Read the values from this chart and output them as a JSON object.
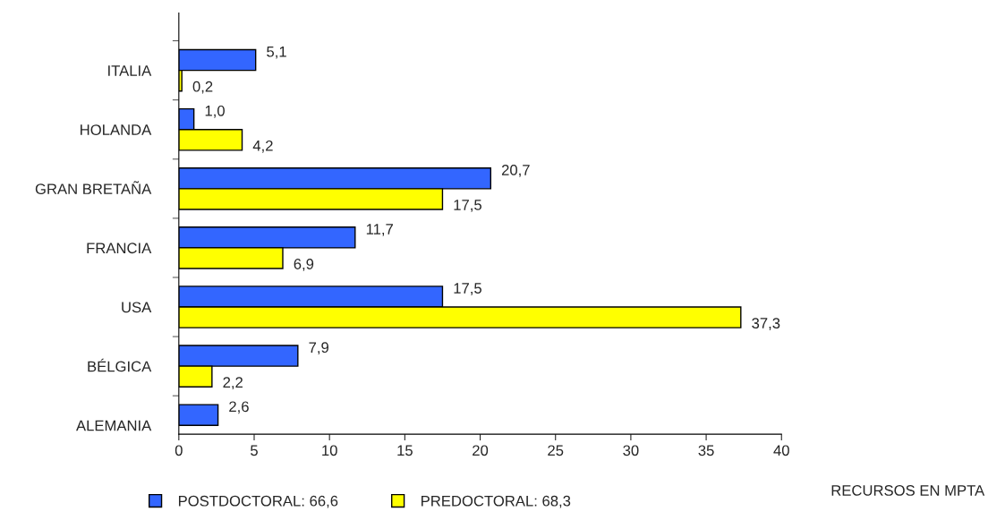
{
  "chart_data": {
    "type": "bar",
    "orientation": "horizontal",
    "categories": [
      "ITALIA",
      "HOLANDA",
      "GRAN BRETAÑA",
      "FRANCIA",
      "USA",
      "BÉLGICA",
      "ALEMANIA"
    ],
    "series": [
      {
        "name": "POSTDOCTORAL: 66,6",
        "color": "#3366ff",
        "values": [
          5.1,
          1.0,
          20.7,
          11.7,
          17.5,
          7.9,
          2.6
        ],
        "value_labels": [
          "5,1",
          "1,0",
          "20,7",
          "11,7",
          "17,5",
          "7,9",
          "2,6"
        ]
      },
      {
        "name": "PREDOCTORAL: 68,3",
        "color": "#ffff00",
        "values": [
          0.2,
          4.2,
          17.5,
          6.9,
          37.3,
          2.2,
          null
        ],
        "value_labels": [
          "0,2",
          "4,2",
          "17,5",
          "6,9",
          "37,3",
          "2,2",
          null
        ]
      }
    ],
    "xlabel": "RECURSOS EN MPTA",
    "xlim": [
      0,
      40
    ],
    "xticks": [
      0,
      5,
      10,
      15,
      20,
      25,
      30,
      35,
      40
    ],
    "grid": false,
    "legend": "bottom"
  }
}
